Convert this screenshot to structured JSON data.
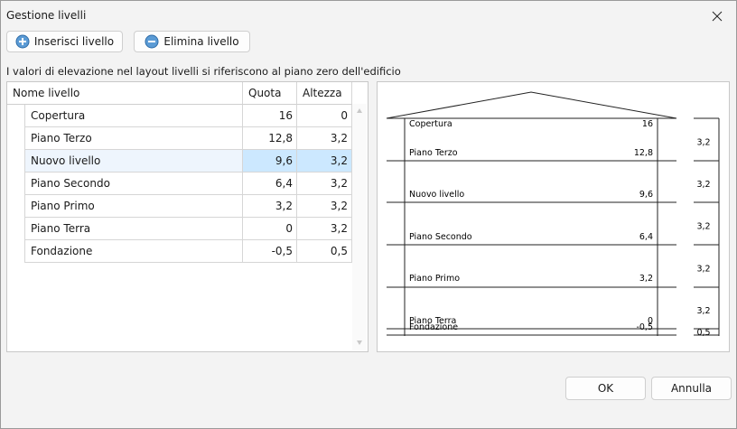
{
  "window": {
    "title": "Gestione livelli"
  },
  "toolbar": {
    "insert": "Inserisci livello",
    "delete": "Elimina livello"
  },
  "info": "I valori di elevazione nel layout livelli si riferiscono al piano zero dell'edificio",
  "table": {
    "headers": [
      "Nome livello",
      "Quota",
      "Altezza"
    ],
    "rows": [
      [
        "Copertura",
        "16",
        "0"
      ],
      [
        "Piano Terzo",
        "12,8",
        "3,2"
      ],
      [
        "Nuovo livello",
        "9,6",
        "3,2"
      ],
      [
        "Piano Secondo",
        "6,4",
        "3,2"
      ],
      [
        "Piano Primo",
        "3,2",
        "3,2"
      ],
      [
        "Piano Terra",
        "0",
        "3,2"
      ],
      [
        "Fondazione",
        "-0,5",
        "0,5"
      ]
    ],
    "selected_row": 2
  },
  "buttons": {
    "ok": "OK",
    "cancel": "Annulla"
  }
}
